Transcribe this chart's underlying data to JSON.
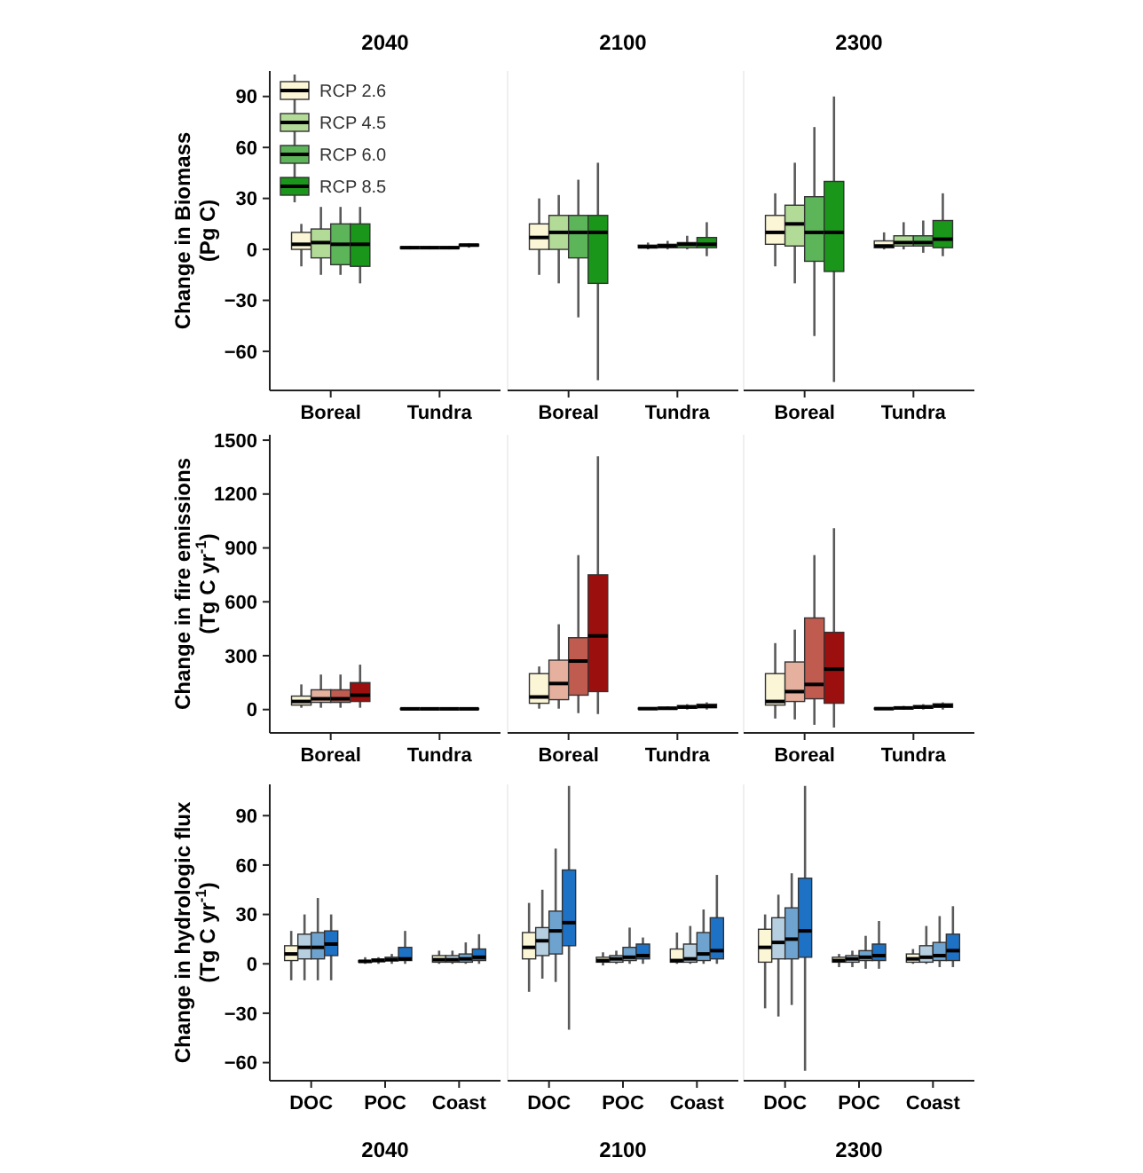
{
  "chart_data": [
    {
      "type": "box",
      "title": "2040",
      "ylabel": "Change in Biomass\n(Pg C)",
      "categories": [
        "Boreal",
        "Tundra"
      ],
      "ylim": [
        -83,
        105
      ],
      "yticks": [
        -60,
        -30,
        0,
        30,
        60,
        90
      ],
      "legend": "top left",
      "series": [
        {
          "name": "RCP 2.6",
          "color": "#fbf6d6",
          "boxes": [
            {
              "low": -10,
              "q1": 0,
              "median": 3,
              "q3": 10,
              "high": 15
            },
            {
              "low": 0,
              "q1": 0.5,
              "median": 1,
              "q3": 1.5,
              "high": 2
            }
          ]
        },
        {
          "name": "RCP 4.5",
          "color": "#b3db98",
          "boxes": [
            {
              "low": -15,
              "q1": -5,
              "median": 4,
              "q3": 12,
              "high": 25
            },
            {
              "low": 0,
              "q1": 0.5,
              "median": 1,
              "q3": 1.5,
              "high": 2
            }
          ]
        },
        {
          "name": "RCP 6.0",
          "color": "#5db55a",
          "boxes": [
            {
              "low": -15,
              "q1": -9,
              "median": 3,
              "q3": 15,
              "high": 25
            },
            {
              "low": 0,
              "q1": 0.5,
              "median": 1,
              "q3": 1.5,
              "high": 2
            }
          ]
        },
        {
          "name": "RCP 8.5",
          "color": "#1a961a",
          "boxes": [
            {
              "low": -20,
              "q1": -10,
              "median": 3,
              "q3": 15,
              "high": 25
            },
            {
              "low": 1,
              "q1": 2,
              "median": 2.5,
              "q3": 3,
              "high": 3.5
            }
          ]
        }
      ]
    },
    {
      "type": "box",
      "title": "2100",
      "categories": [
        "Boreal",
        "Tundra"
      ],
      "ylim": [
        -83,
        105
      ],
      "yticks": [
        -60,
        -30,
        0,
        30,
        60,
        90
      ],
      "tick_labels": "x",
      "series": [
        {
          "color": "#fbf6d6",
          "boxes": [
            {
              "low": -15,
              "q1": 0,
              "median": 7,
              "q3": 15,
              "high": 30
            },
            {
              "low": 0,
              "q1": 1,
              "median": 1.5,
              "q3": 2.5,
              "high": 4
            }
          ]
        },
        {
          "color": "#b3db98",
          "boxes": [
            {
              "low": -20,
              "q1": 0,
              "median": 10,
              "q3": 20,
              "high": 32
            },
            {
              "low": 0,
              "q1": 1,
              "median": 2,
              "q3": 3,
              "high": 5
            }
          ]
        },
        {
          "color": "#5db55a",
          "boxes": [
            {
              "low": -40,
              "q1": -5,
              "median": 10,
              "q3": 20,
              "high": 41
            },
            {
              "low": 0,
              "q1": 1,
              "median": 3,
              "q3": 4,
              "high": 8
            }
          ]
        },
        {
          "color": "#1a961a",
          "boxes": [
            {
              "low": -77,
              "q1": -20,
              "median": 10,
              "q3": 20,
              "high": 51
            },
            {
              "low": -4,
              "q1": 1,
              "median": 3,
              "q3": 7,
              "high": 16
            }
          ]
        }
      ]
    },
    {
      "type": "box",
      "title": "2300",
      "categories": [
        "Boreal",
        "Tundra"
      ],
      "ylim": [
        -83,
        105
      ],
      "yticks": [
        -60,
        -30,
        0,
        30,
        60,
        90
      ],
      "tick_labels": "x",
      "series": [
        {
          "color": "#fbf6d6",
          "boxes": [
            {
              "low": -10,
              "q1": 3,
              "median": 10,
              "q3": 20,
              "high": 33
            },
            {
              "low": 0,
              "q1": 1,
              "median": 2,
              "q3": 5,
              "high": 10
            }
          ]
        },
        {
          "color": "#b3db98",
          "boxes": [
            {
              "low": -20,
              "q1": 2,
              "median": 15,
              "q3": 26,
              "high": 51
            },
            {
              "low": 0,
              "q1": 2,
              "median": 4,
              "q3": 8,
              "high": 16
            }
          ]
        },
        {
          "color": "#5db55a",
          "boxes": [
            {
              "low": -51,
              "q1": -7,
              "median": 10,
              "q3": 31,
              "high": 72
            },
            {
              "low": -2,
              "q1": 2,
              "median": 4,
              "q3": 8,
              "high": 17
            }
          ]
        },
        {
          "color": "#1a961a",
          "boxes": [
            {
              "low": -78,
              "q1": -13,
              "median": 10,
              "q3": 40,
              "high": 90
            },
            {
              "low": -4,
              "q1": 1,
              "median": 6,
              "q3": 17,
              "high": 33
            }
          ]
        }
      ]
    },
    {
      "type": "box",
      "ylabel": "Change in fire emissions\n(Tg C yr$^{-1}$)",
      "categories": [
        "Boreal",
        "Tundra"
      ],
      "ylim": [
        -130,
        1530
      ],
      "yticks": [
        0,
        300,
        600,
        900,
        1200,
        1500
      ],
      "series": [
        {
          "color": "#fbf6d6",
          "boxes": [
            {
              "low": 10,
              "q1": 25,
              "median": 45,
              "q3": 75,
              "high": 140
            },
            {
              "low": 0,
              "q1": 2,
              "median": 4,
              "q3": 6,
              "high": 10
            }
          ]
        },
        {
          "color": "#e6b09e",
          "boxes": [
            {
              "low": 10,
              "q1": 40,
              "median": 60,
              "q3": 110,
              "high": 195
            },
            {
              "low": 0,
              "q1": 2,
              "median": 4,
              "q3": 6,
              "high": 10
            }
          ]
        },
        {
          "color": "#c05b50",
          "boxes": [
            {
              "low": 10,
              "q1": 40,
              "median": 60,
              "q3": 110,
              "high": 195
            },
            {
              "low": 0,
              "q1": 2,
              "median": 4,
              "q3": 6,
              "high": 10
            }
          ]
        },
        {
          "color": "#9c0f0f",
          "boxes": [
            {
              "low": 10,
              "q1": 45,
              "median": 80,
              "q3": 150,
              "high": 250
            },
            {
              "low": 0,
              "q1": 2,
              "median": 4,
              "q3": 6,
              "high": 10
            }
          ]
        }
      ]
    },
    {
      "type": "box",
      "categories": [
        "Boreal",
        "Tundra"
      ],
      "ylim": [
        -130,
        1530
      ],
      "yticks": [
        0,
        300,
        600,
        900,
        1200,
        1500
      ],
      "tick_labels": "x",
      "series": [
        {
          "color": "#fbf6d6",
          "boxes": [
            {
              "low": 5,
              "q1": 35,
              "median": 70,
              "q3": 200,
              "high": 240
            },
            {
              "low": 0,
              "q1": 3,
              "median": 5,
              "q3": 8,
              "high": 12
            }
          ]
        },
        {
          "color": "#e6b09e",
          "boxes": [
            {
              "low": 5,
              "q1": 55,
              "median": 145,
              "q3": 275,
              "high": 475
            },
            {
              "low": 0,
              "q1": 4,
              "median": 7,
              "q3": 12,
              "high": 18
            }
          ]
        },
        {
          "color": "#c05b50",
          "boxes": [
            {
              "low": -20,
              "q1": 80,
              "median": 270,
              "q3": 400,
              "high": 860
            },
            {
              "low": 0,
              "q1": 8,
              "median": 14,
              "q3": 22,
              "high": 30
            }
          ]
        },
        {
          "color": "#9c0f0f",
          "boxes": [
            {
              "low": -25,
              "q1": 100,
              "median": 410,
              "q3": 750,
              "high": 1410
            },
            {
              "low": 0,
              "q1": 10,
              "median": 18,
              "q3": 30,
              "high": 40
            }
          ]
        }
      ]
    },
    {
      "type": "box",
      "categories": [
        "Boreal",
        "Tundra"
      ],
      "ylim": [
        -130,
        1530
      ],
      "yticks": [
        0,
        300,
        600,
        900,
        1200,
        1500
      ],
      "tick_labels": "x",
      "series": [
        {
          "color": "#fbf6d6",
          "boxes": [
            {
              "low": -50,
              "q1": 25,
              "median": 45,
              "q3": 200,
              "high": 370
            },
            {
              "low": 0,
              "q1": 3,
              "median": 5,
              "q3": 8,
              "high": 12
            }
          ]
        },
        {
          "color": "#e6b09e",
          "boxes": [
            {
              "low": -55,
              "q1": 45,
              "median": 100,
              "q3": 265,
              "high": 445
            },
            {
              "low": 0,
              "q1": 5,
              "median": 9,
              "q3": 14,
              "high": 20
            }
          ]
        },
        {
          "color": "#c05b50",
          "boxes": [
            {
              "low": -85,
              "q1": 60,
              "median": 140,
              "q3": 510,
              "high": 860
            },
            {
              "low": 0,
              "q1": 8,
              "median": 14,
              "q3": 22,
              "high": 30
            }
          ]
        },
        {
          "color": "#9c0f0f",
          "boxes": [
            {
              "low": -100,
              "q1": 35,
              "median": 225,
              "q3": 430,
              "high": 1010
            },
            {
              "low": 0,
              "q1": 12,
              "median": 22,
              "q3": 32,
              "high": 40
            }
          ]
        }
      ]
    },
    {
      "type": "box",
      "xlabel": "2040",
      "ylabel": "Change in hydrologic flux\n(Tg C yr$^{-1}$)",
      "categories": [
        "DOC",
        "POC",
        "Coast"
      ],
      "ylim": [
        -71,
        109
      ],
      "yticks": [
        -60,
        -30,
        0,
        30,
        60,
        90
      ],
      "series": [
        {
          "color": "#fbf6d6",
          "boxes": [
            {
              "low": -10,
              "q1": 2,
              "median": 6,
              "q3": 11,
              "high": 20
            },
            {
              "low": 0,
              "q1": 1,
              "median": 1.5,
              "q3": 2,
              "high": 4
            },
            {
              "low": 0,
              "q1": 1,
              "median": 2.5,
              "q3": 5,
              "high": 8
            }
          ]
        },
        {
          "color": "#b6cfe0",
          "boxes": [
            {
              "low": -10,
              "q1": 3,
              "median": 10,
              "q3": 18,
              "high": 30
            },
            {
              "low": 0,
              "q1": 1.5,
              "median": 2,
              "q3": 3,
              "high": 4
            },
            {
              "low": 0,
              "q1": 1,
              "median": 2.5,
              "q3": 5,
              "high": 8
            }
          ]
        },
        {
          "color": "#6ea3d0",
          "boxes": [
            {
              "low": -10,
              "q1": 3,
              "median": 10,
              "q3": 19,
              "high": 40
            },
            {
              "low": 0,
              "q1": 2,
              "median": 2.5,
              "q3": 4,
              "high": 6
            },
            {
              "low": 0,
              "q1": 1,
              "median": 3,
              "q3": 6,
              "high": 13
            }
          ]
        },
        {
          "color": "#1e72c6",
          "boxes": [
            {
              "low": -10,
              "q1": 5,
              "median": 12,
              "q3": 20,
              "high": 30
            },
            {
              "low": 0,
              "q1": 2,
              "median": 3,
              "q3": 10,
              "high": 20
            },
            {
              "low": 0,
              "q1": 2,
              "median": 4,
              "q3": 9,
              "high": 18
            }
          ]
        }
      ]
    },
    {
      "type": "box",
      "xlabel": "2100",
      "categories": [
        "DOC",
        "POC",
        "Coast"
      ],
      "ylim": [
        -71,
        109
      ],
      "yticks": [
        -60,
        -30,
        0,
        30,
        60,
        90
      ],
      "tick_labels": "x",
      "series": [
        {
          "color": "#fbf6d6",
          "boxes": [
            {
              "low": -17,
              "q1": 3,
              "median": 10,
              "q3": 19,
              "high": 37
            },
            {
              "low": -1,
              "q1": 1,
              "median": 2,
              "q3": 4,
              "high": 7
            },
            {
              "low": 0,
              "q1": 1,
              "median": 2,
              "q3": 9,
              "high": 19
            }
          ]
        },
        {
          "color": "#b6cfe0",
          "boxes": [
            {
              "low": -9,
              "q1": 5,
              "median": 14,
              "q3": 22,
              "high": 45
            },
            {
              "low": 0,
              "q1": 1,
              "median": 3,
              "q3": 5,
              "high": 8
            },
            {
              "low": 0,
              "q1": 1,
              "median": 3,
              "q3": 12,
              "high": 23
            }
          ]
        },
        {
          "color": "#6ea3d0",
          "boxes": [
            {
              "low": -11,
              "q1": 6,
              "median": 20,
              "q3": 32,
              "high": 70
            },
            {
              "low": 0,
              "q1": 2,
              "median": 4,
              "q3": 10,
              "high": 22
            },
            {
              "low": 0,
              "q1": 2,
              "median": 6,
              "q3": 19,
              "high": 33
            }
          ]
        },
        {
          "color": "#1e72c6",
          "boxes": [
            {
              "low": -40,
              "q1": 11,
              "median": 25,
              "q3": 57,
              "high": 108
            },
            {
              "low": 0,
              "q1": 3,
              "median": 5,
              "q3": 12,
              "high": 16
            },
            {
              "low": 0,
              "q1": 3,
              "median": 8,
              "q3": 28,
              "high": 54
            }
          ]
        }
      ]
    },
    {
      "type": "box",
      "xlabel": "2300",
      "categories": [
        "DOC",
        "POC",
        "Coast"
      ],
      "ylim": [
        -71,
        109
      ],
      "yticks": [
        -60,
        -30,
        0,
        30,
        60,
        90
      ],
      "tick_labels": "x",
      "series": [
        {
          "color": "#fbf6d6",
          "boxes": [
            {
              "low": -27,
              "q1": 1,
              "median": 10,
              "q3": 21,
              "high": 30
            },
            {
              "low": -2,
              "q1": 1,
              "median": 2,
              "q3": 4,
              "high": 6
            },
            {
              "low": 0,
              "q1": 1,
              "median": 3,
              "q3": 6,
              "high": 9
            }
          ]
        },
        {
          "color": "#b6cfe0",
          "boxes": [
            {
              "low": -32,
              "q1": 3,
              "median": 13,
              "q3": 28,
              "high": 42
            },
            {
              "low": -2,
              "q1": 1,
              "median": 3,
              "q3": 5,
              "high": 8
            },
            {
              "low": 0,
              "q1": 1,
              "median": 4,
              "q3": 11,
              "high": 23
            }
          ]
        },
        {
          "color": "#6ea3d0",
          "boxes": [
            {
              "low": -25,
              "q1": 3,
              "median": 15,
              "q3": 34,
              "high": 55
            },
            {
              "low": -3,
              "q1": 2,
              "median": 4,
              "q3": 8,
              "high": 17
            },
            {
              "low": -2,
              "q1": 2,
              "median": 5,
              "q3": 13,
              "high": 29
            }
          ]
        },
        {
          "color": "#1e72c6",
          "boxes": [
            {
              "low": -65,
              "q1": 4,
              "median": 20,
              "q3": 52,
              "high": 108
            },
            {
              "low": -3,
              "q1": 2,
              "median": 5,
              "q3": 12,
              "high": 26
            },
            {
              "low": -2,
              "q1": 2,
              "median": 8,
              "q3": 18,
              "high": 35
            }
          ]
        }
      ]
    }
  ]
}
